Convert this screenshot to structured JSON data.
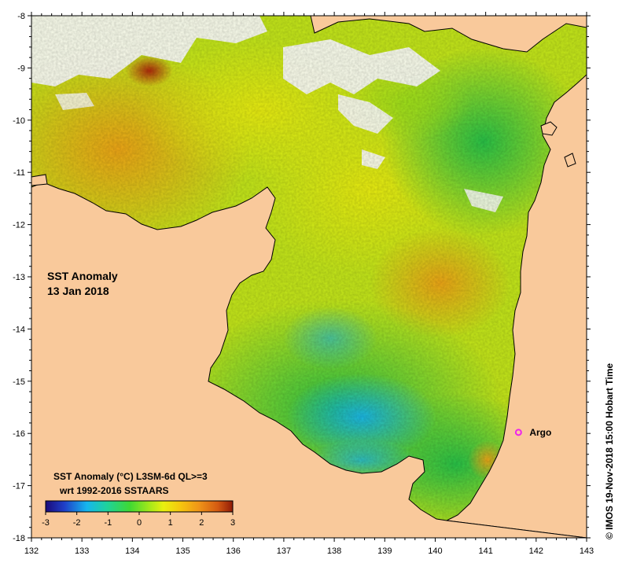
{
  "title": "SST Anomaly",
  "date": "13 Jan 2018",
  "colorbar": {
    "title": "SST Anomaly (°C) L3SM-6d QL>=3",
    "subtitle": "wrt 1992-2016 SSTAARS",
    "ticks": [
      "-3",
      "-2",
      "-1",
      "0",
      "1",
      "2",
      "3"
    ],
    "range": [
      -3,
      3
    ],
    "colors": [
      "#1b0a7a",
      "#1f3fc8",
      "#16b6ee",
      "#1fd36a",
      "#5ed821",
      "#b8ec13",
      "#f2ee0f",
      "#f5c70e",
      "#ef9418",
      "#d45a12",
      "#8f1a07"
    ]
  },
  "axes": {
    "x_ticks": [
      "132",
      "133",
      "134",
      "135",
      "136",
      "137",
      "138",
      "139",
      "140",
      "141",
      "142",
      "143"
    ],
    "y_ticks": [
      "-8",
      "-9",
      "-10",
      "-11",
      "-12",
      "-13",
      "-14",
      "-15",
      "-16",
      "-17",
      "-18"
    ]
  },
  "marker": {
    "label": "Argo",
    "lon": 141.65,
    "lat": -15.98,
    "color": "#ee22ee"
  },
  "credit": "© IMOS 19-Nov-2018 15:00 Hobart Time",
  "colors": {
    "land": "#f9c99b",
    "coast": "#000000",
    "no_data": "#ffffff"
  }
}
